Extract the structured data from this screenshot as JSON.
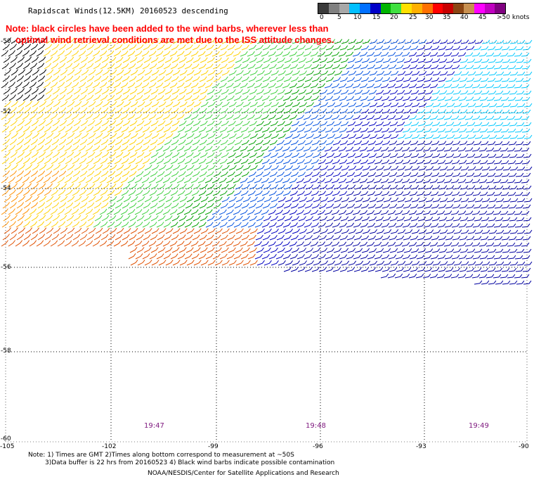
{
  "header": {
    "title": "Rapidscat Winds(12.5KM) 20160523 descending"
  },
  "notice": {
    "line1": "Note: black circles have been added to the wind barbs, wherever less than",
    "line2": "optimal wind retrieval conditions are met due to the ISS attitude changes."
  },
  "legend": {
    "labels": [
      "0",
      "5",
      "10",
      "15",
      "20",
      "25",
      "30",
      "35",
      "40",
      "45",
      ">50 knots"
    ],
    "colors": [
      "#3a3a3a",
      "#808080",
      "#a8a8a8",
      "#00bfff",
      "#0070ff",
      "#0000c8",
      "#00b400",
      "#40e040",
      "#ffe000",
      "#ffb000",
      "#ff7000",
      "#ff0000",
      "#c80000",
      "#8b4513",
      "#c89050",
      "#ff00ff",
      "#c000c0",
      "#800080"
    ]
  },
  "axes": {
    "x_ticks": [
      "-105",
      "-102",
      "-99",
      "-96",
      "-93",
      "-90"
    ],
    "y_ticks": [
      "-52",
      "-54",
      "-56",
      "-58",
      "-60"
    ],
    "y_top_partial": "-50"
  },
  "times": [
    "19:47",
    "19:48",
    "19:49"
  ],
  "footer": {
    "line1": "Note: 1) Times are GMT 2)Times along bottom correspond to measurement at ~50S",
    "line2": "3)Data buffer is 22 hrs from 20160523 4) Black wind barbs indicate possible contamination",
    "line3": "NOAA/NESDIS/Center for Satellite Applications and Research"
  }
}
